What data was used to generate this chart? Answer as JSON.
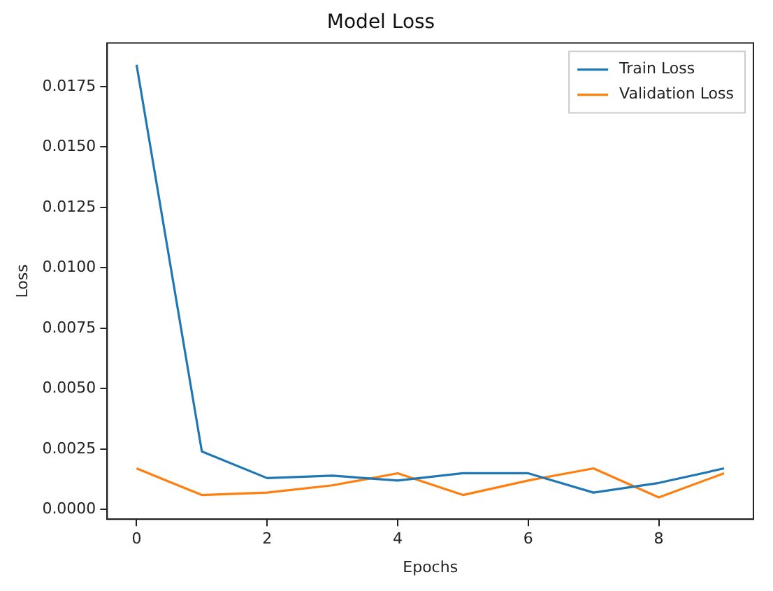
{
  "chart_data": {
    "type": "line",
    "title": "Model Loss",
    "xlabel": "Epochs",
    "ylabel": "Loss",
    "x": [
      0,
      1,
      2,
      3,
      4,
      5,
      6,
      7,
      8,
      9
    ],
    "series": [
      {
        "name": "Train Loss",
        "color": "#1f77b4",
        "values": [
          0.0184,
          0.0024,
          0.0013,
          0.0014,
          0.0012,
          0.0015,
          0.0015,
          0.0007,
          0.0011,
          0.0017
        ]
      },
      {
        "name": "Validation Loss",
        "color": "#ff7f0e",
        "values": [
          0.0017,
          0.0006,
          0.0007,
          0.001,
          0.0015,
          0.0006,
          0.0012,
          0.0017,
          0.0005,
          0.0015
        ]
      }
    ],
    "xlim": [
      -0.45,
      9.45
    ],
    "xticks": [
      0,
      2,
      4,
      6,
      8
    ],
    "ylim": [
      -0.0004,
      0.0193
    ],
    "yticks": [
      {
        "value": 0,
        "label": "0.0000"
      },
      {
        "value": 0.0025,
        "label": "0.0025"
      },
      {
        "value": 0.005,
        "label": "0.0050"
      },
      {
        "value": 0.0075,
        "label": "0.0075"
      },
      {
        "value": 0.01,
        "label": "0.0100"
      },
      {
        "value": 0.0125,
        "label": "0.0125"
      },
      {
        "value": 0.015,
        "label": "0.0150"
      },
      {
        "value": 0.0175,
        "label": "0.0175"
      }
    ],
    "grid": false,
    "legend": "top right",
    "marker": "none",
    "line_style": "solid"
  }
}
